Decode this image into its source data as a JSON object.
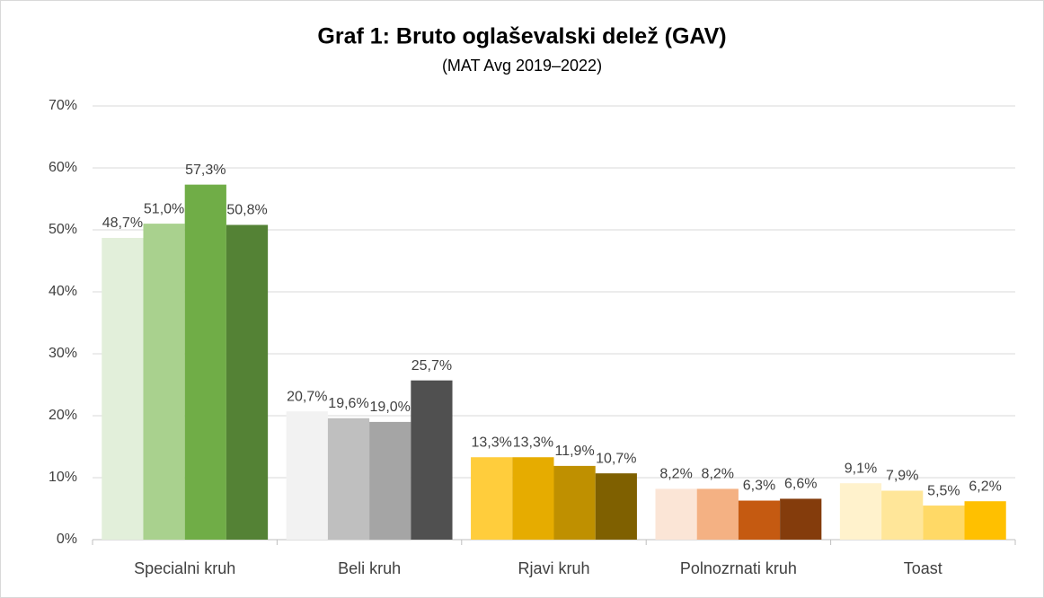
{
  "chart_data": {
    "type": "bar",
    "title": "Graf 1: Bruto oglaševalski delež (GAV)",
    "subtitle": "(MAT Avg 2019–2022)",
    "categories": [
      "Specialni kruh",
      "Beli kruh",
      "Rjavi kruh",
      "Polnozrnati kruh",
      "Toast"
    ],
    "series": [
      {
        "values": [
          48.7,
          20.7,
          13.3,
          8.2,
          9.1
        ],
        "value_labels": [
          "48,7%",
          "20,7%",
          "13,3%",
          "8,2%",
          "9,1%"
        ]
      },
      {
        "values": [
          51.0,
          19.6,
          13.3,
          8.2,
          7.9
        ],
        "value_labels": [
          "51,0%",
          "19,6%",
          "13,3%",
          "8,2%",
          "7,9%"
        ]
      },
      {
        "values": [
          57.3,
          19.0,
          11.9,
          6.3,
          5.5
        ],
        "value_labels": [
          "57,3%",
          "19,0%",
          "11,9%",
          "6,3%",
          "5,5%"
        ]
      },
      {
        "values": [
          50.8,
          25.7,
          10.7,
          6.6,
          6.2
        ],
        "value_labels": [
          "50,8%",
          "25,7%",
          "10,7%",
          "6,6%",
          "6,2%"
        ]
      }
    ],
    "colors": [
      [
        "#e2efda",
        "#a9d18e",
        "#70ad47",
        "#548235"
      ],
      [
        "#f2f2f2",
        "#bfbfbf",
        "#a5a5a5",
        "#505050"
      ],
      [
        "#ffcd3c",
        "#e6ac00",
        "#bf9000",
        "#7f6000"
      ],
      [
        "#fbe5d6",
        "#f4b183",
        "#c55a11",
        "#843c0c"
      ],
      [
        "#fff2cc",
        "#ffe699",
        "#ffd966",
        "#ffc000"
      ]
    ],
    "ylim": [
      0,
      70
    ],
    "yticks": [
      {
        "value": 0,
        "label": "0%"
      },
      {
        "value": 10,
        "label": "10%"
      },
      {
        "value": 20,
        "label": "20%"
      },
      {
        "value": 30,
        "label": "30%"
      },
      {
        "value": 40,
        "label": "40%"
      },
      {
        "value": 50,
        "label": "50%"
      },
      {
        "value": 60,
        "label": "60%"
      },
      {
        "value": 70,
        "label": "70%"
      }
    ],
    "grid": true
  }
}
